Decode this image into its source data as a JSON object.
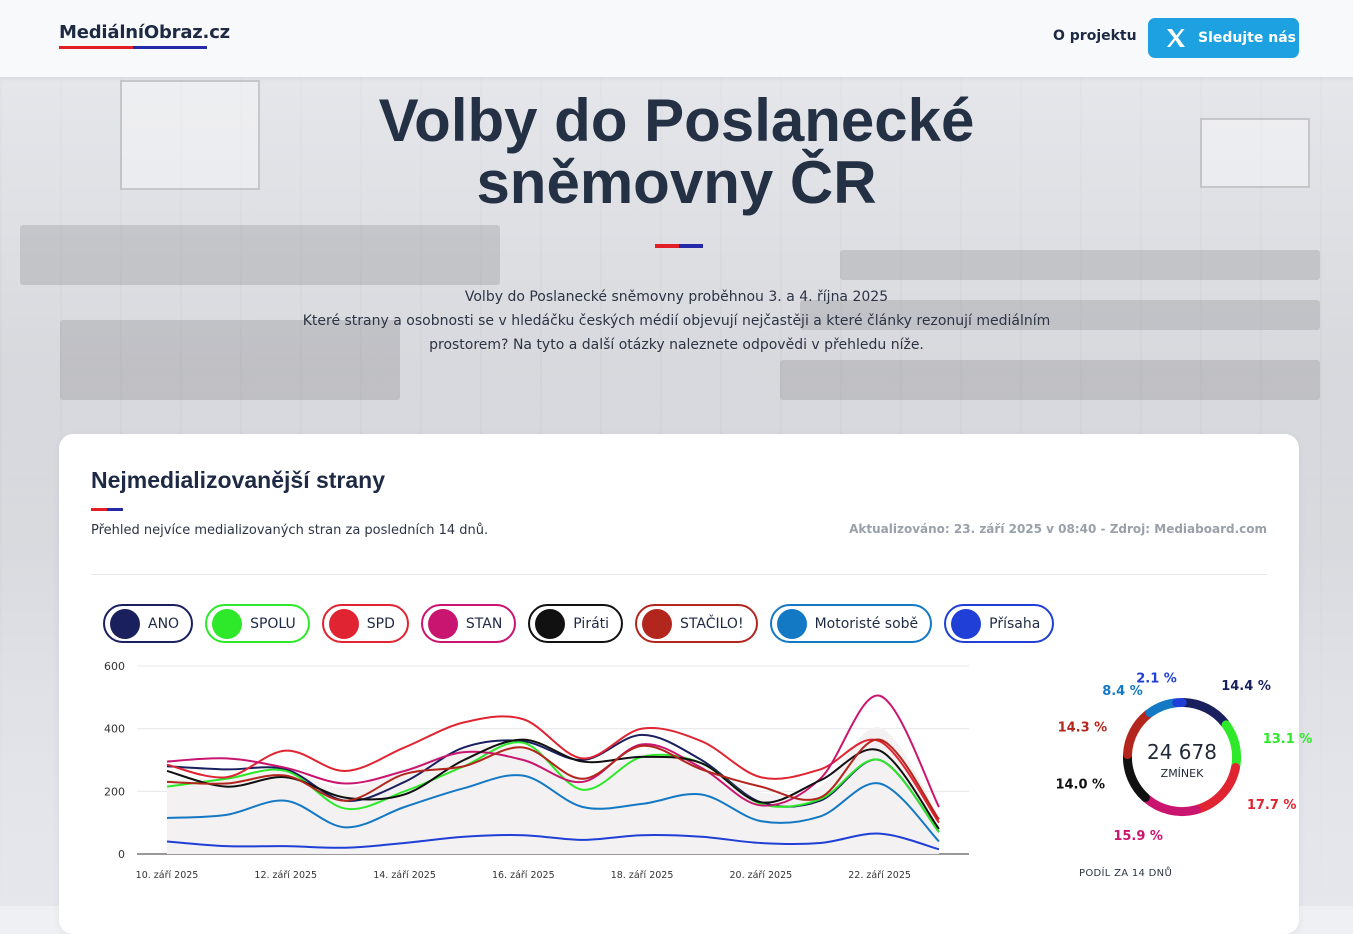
{
  "header": {
    "logo": "MediálníObraz.cz",
    "nav_about": "O projektu",
    "follow_label": "Sledujte nás"
  },
  "hero": {
    "title_line1": "Volby do Poslanecké",
    "title_line2": "sněmovny ČR",
    "intro_line1": "Volby do Poslanecké sněmovny proběhnou 3. a 4. října 2025",
    "intro_line2": "Které strany a osobnosti se v hledáčku českých médií objevují nejčastěji a které články rezonují mediálním prostorem? Na tyto a další otázky naleznete odpovědi v přehledu níže."
  },
  "card": {
    "title": "Nejmedializovanější strany",
    "subtitle": "Přehled nejvíce medializovaných stran za posledních 14 dnů.",
    "updated": "Aktualizováno: 23. září 2025 v 08:40 - Zdroj: Mediaboard.com"
  },
  "parties": [
    {
      "name": "ANO",
      "color": "#1a1f5e",
      "icon": "ano-logo-icon"
    },
    {
      "name": "SPOLU",
      "color": "#2ee82a",
      "icon": "spolu-logo-icon"
    },
    {
      "name": "SPD",
      "color": "#e02431",
      "icon": "spd-logo-icon"
    },
    {
      "name": "STAN",
      "color": "#c9156f",
      "icon": "stan-logo-icon"
    },
    {
      "name": "Piráti",
      "color": "#111111",
      "icon": "pirati-logo-icon"
    },
    {
      "name": "STAČILO!",
      "color": "#b3261e",
      "icon": "stacilo-logo-icon"
    },
    {
      "name": "Motoristé sobě",
      "color": "#1479c4",
      "icon": "motoriste-logo-icon"
    },
    {
      "name": "Přísaha",
      "color": "#1f3fd6",
      "icon": "prisaha-logo-icon"
    }
  ],
  "chart_data": [
    {
      "type": "line",
      "x": [
        "10. září 2025",
        "11. září 2025",
        "12. září 2025",
        "13. září 2025",
        "14. září 2025",
        "15. září 2025",
        "16. září 2025",
        "17. září 2025",
        "18. září 2025",
        "19. září 2025",
        "20. září 2025",
        "21. září 2025",
        "22. září 2025",
        "23. září 2025"
      ],
      "x_tick_labels": [
        "10. září 2025",
        "12. září 2025",
        "14. září 2025",
        "16. září 2025",
        "18. září 2025",
        "20. září 2025",
        "22. září 2025"
      ],
      "y_ticks": [
        "0",
        "200",
        "400",
        "600"
      ],
      "ylim": [
        0,
        600
      ],
      "grid": true,
      "series": [
        {
          "name": "ANO",
          "color": "#1a1f5e",
          "values": [
            280,
            270,
            270,
            170,
            230,
            340,
            360,
            300,
            380,
            300,
            165,
            170,
            300,
            70
          ]
        },
        {
          "name": "SPOLU",
          "color": "#2ee82a",
          "values": [
            215,
            240,
            265,
            145,
            200,
            280,
            355,
            205,
            310,
            290,
            160,
            175,
            300,
            70
          ]
        },
        {
          "name": "SPD",
          "color": "#e02431",
          "values": [
            285,
            245,
            330,
            265,
            340,
            420,
            430,
            305,
            400,
            360,
            245,
            270,
            360,
            100
          ]
        },
        {
          "name": "STAN",
          "color": "#c9156f",
          "values": [
            295,
            305,
            275,
            225,
            265,
            325,
            300,
            230,
            350,
            275,
            155,
            240,
            505,
            150
          ]
        },
        {
          "name": "Piráti",
          "color": "#111111",
          "values": [
            265,
            215,
            245,
            180,
            190,
            300,
            365,
            295,
            310,
            290,
            165,
            235,
            330,
            80
          ]
        },
        {
          "name": "STAČILO!",
          "color": "#b3261e",
          "values": [
            230,
            225,
            250,
            170,
            255,
            280,
            340,
            240,
            345,
            270,
            215,
            180,
            365,
            110
          ]
        },
        {
          "name": "Motoristé sobě",
          "color": "#1479c4",
          "values": [
            115,
            125,
            170,
            85,
            150,
            210,
            250,
            150,
            160,
            190,
            105,
            120,
            225,
            40
          ]
        },
        {
          "name": "Přísaha",
          "color": "#1f3fd6",
          "values": [
            40,
            25,
            25,
            20,
            35,
            55,
            60,
            45,
            60,
            55,
            35,
            35,
            65,
            15
          ]
        }
      ]
    },
    {
      "type": "pie",
      "total": "24 678",
      "total_label": "ZMÍNEK",
      "caption": "PODÍL ZA 14 DNŮ",
      "slices": [
        {
          "party": "ANO",
          "value": 14.4,
          "label": "14.4 %",
          "color": "#1a1f5e"
        },
        {
          "party": "SPOLU",
          "value": 13.1,
          "label": "13.1 %",
          "color": "#2ee82a"
        },
        {
          "party": "SPD",
          "value": 17.7,
          "label": "17.7 %",
          "color": "#e02431"
        },
        {
          "party": "STAN",
          "value": 15.9,
          "label": "15.9 %",
          "color": "#c9156f"
        },
        {
          "party": "Piráti",
          "value": 14.0,
          "label": "14.0 %",
          "color": "#111111"
        },
        {
          "party": "STAČILO!",
          "value": 14.3,
          "label": "14.3 %",
          "color": "#b3261e"
        },
        {
          "party": "Motoristé sobě",
          "value": 8.4,
          "label": "8.4 %",
          "color": "#1479c4"
        },
        {
          "party": "Přísaha",
          "value": 2.1,
          "label": "2.1 %",
          "color": "#1f3fd6"
        }
      ]
    }
  ]
}
